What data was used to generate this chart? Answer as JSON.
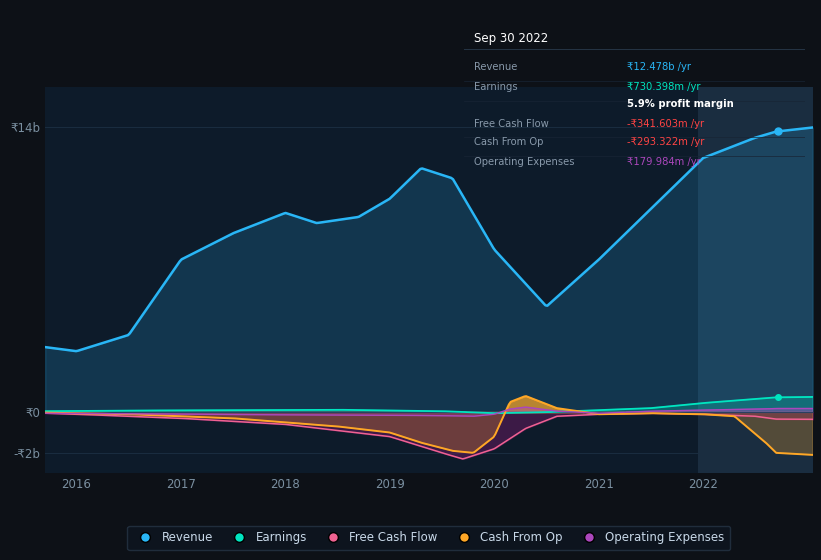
{
  "bg_color": "#0d1117",
  "plot_bg_color": "#0d1b2a",
  "highlight_bg_color": "#1a2d40",
  "grid_color": "#1a2d40",
  "ylim": [
    -3000000000.0,
    16000000000.0
  ],
  "xlim_start": 2015.7,
  "xlim_end": 2023.05,
  "xticks": [
    2016,
    2017,
    2018,
    2019,
    2020,
    2021,
    2022
  ],
  "highlight_x_start": 2021.95,
  "highlight_x_end": 2023.05,
  "revenue_color": "#29b6f6",
  "earnings_color": "#00e5c0",
  "fcf_color": "#f06292",
  "cashfromop_color": "#ffa726",
  "opex_color": "#ab47bc",
  "tooltip_title": "Sep 30 2022",
  "tooltip_revenue_label": "Revenue",
  "tooltip_revenue_value": "₹12.478b /yr",
  "tooltip_earnings_label": "Earnings",
  "tooltip_earnings_value": "₹730.398m /yr",
  "tooltip_margin_value": "5.9% profit margin",
  "tooltip_fcf_label": "Free Cash Flow",
  "tooltip_fcf_value": "-₹341.603m /yr",
  "tooltip_cashop_label": "Cash From Op",
  "tooltip_cashop_value": "-₹293.322m /yr",
  "tooltip_opex_label": "Operating Expenses",
  "tooltip_opex_value": "₹179.984m /yr",
  "legend_labels": [
    "Revenue",
    "Earnings",
    "Free Cash Flow",
    "Cash From Op",
    "Operating Expenses"
  ],
  "legend_colors": [
    "#29b6f6",
    "#00e5c0",
    "#f06292",
    "#ffa726",
    "#ab47bc"
  ]
}
